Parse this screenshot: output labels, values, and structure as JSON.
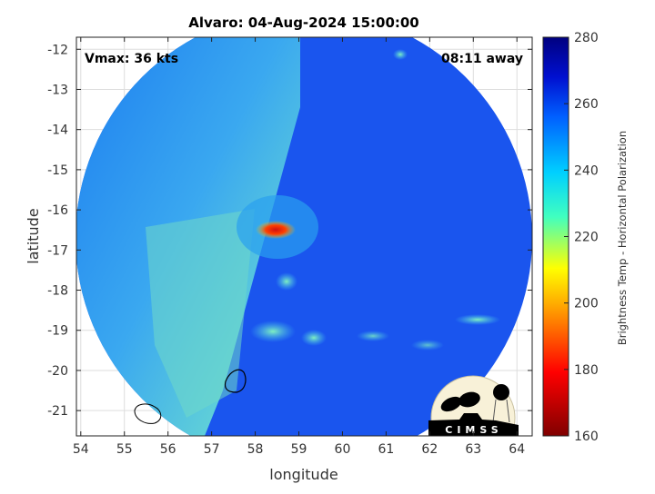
{
  "title": "Alvaro: 04-Aug-2024 15:00:00",
  "annotations": {
    "vmax": "Vmax: 36 kts",
    "time_away": "08:11 away"
  },
  "x_axis": {
    "label": "longitude",
    "ticks": [
      "54",
      "55",
      "56",
      "57",
      "58",
      "59",
      "60",
      "61",
      "62",
      "63",
      "64"
    ],
    "range": [
      53.9,
      64.35
    ]
  },
  "y_axis": {
    "label": "latitude",
    "ticks": [
      "-12",
      "-13",
      "-14",
      "-15",
      "-16",
      "-17",
      "-18",
      "-19",
      "-20",
      "-21"
    ],
    "range": [
      -21.63,
      -11.7
    ]
  },
  "colorbar": {
    "label": "Brightness Temp - Horizontal Polarization",
    "ticks": [
      "280",
      "260",
      "240",
      "220",
      "200",
      "180",
      "160"
    ],
    "range": [
      160,
      280
    ],
    "colormap": [
      "#800000",
      "#ff0000",
      "#ffff00",
      "#00ffff",
      "#0000ff",
      "#000080"
    ]
  },
  "logo": {
    "text": "CIMSS"
  },
  "colors": {
    "background_scene": "#1a55ee",
    "eye_region": "#ff2000",
    "outline": "#000000"
  }
}
